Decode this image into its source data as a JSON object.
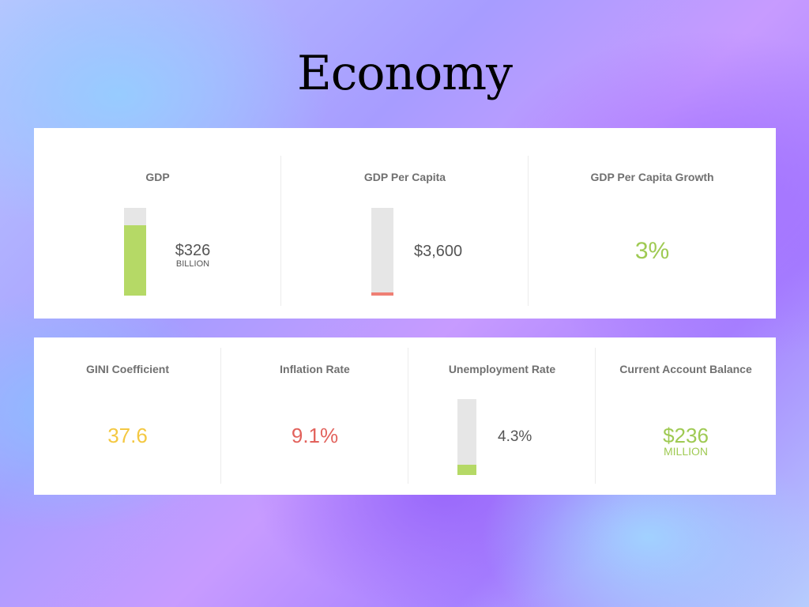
{
  "title": "Economy",
  "metrics_top": [
    {
      "label": "GDP",
      "value": "$326",
      "unit": "BILLION",
      "bar_fill": 0.8,
      "bar_color": "#b5d966"
    },
    {
      "label": "GDP Per Capita",
      "value": "$3,600",
      "bar_fill": 0.04,
      "bar_color": "#ef7f74"
    },
    {
      "label": "GDP Per Capita Growth",
      "value": "3%",
      "value_color": "#9fca53"
    }
  ],
  "metrics_bottom": [
    {
      "label": "GINI Coefficient",
      "value": "37.6",
      "value_color": "#f4c842"
    },
    {
      "label": "Inflation Rate",
      "value": "9.1%",
      "value_color": "#e2625c"
    },
    {
      "label": "Unemployment Rate",
      "value": "4.3%",
      "bar_fill": 0.14,
      "bar_color": "#b5d966"
    },
    {
      "label": "Current Account Balance",
      "value": "$236",
      "unit": "MILLION",
      "value_color": "#9fca53"
    }
  ]
}
